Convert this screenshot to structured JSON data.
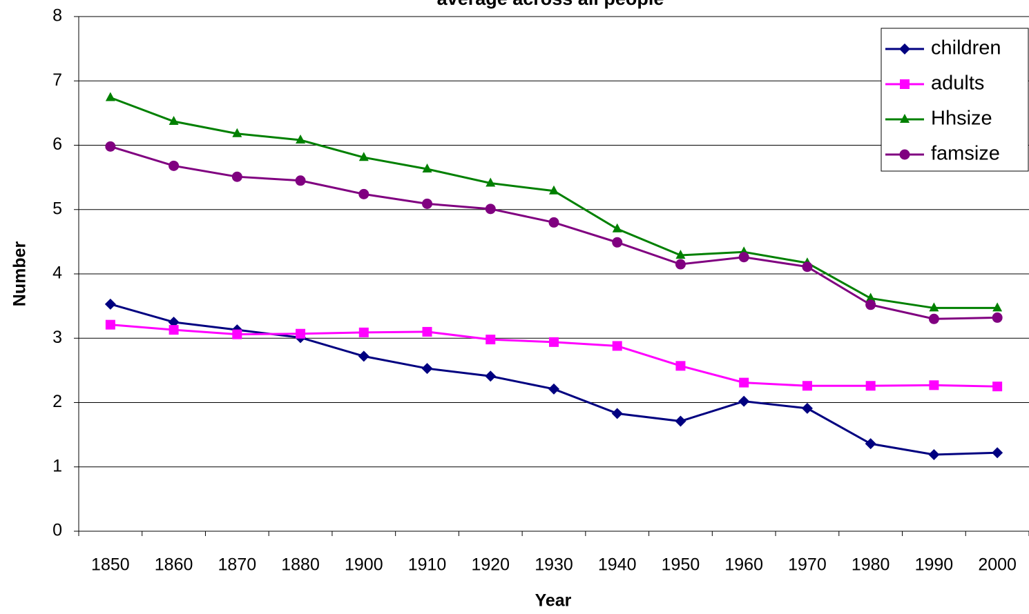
{
  "chart_data": {
    "type": "line",
    "title": "average across all people",
    "x_label": "Year",
    "y_label": "Number",
    "categories": [
      "1850",
      "1860",
      "1870",
      "1880",
      "1900",
      "1910",
      "1920",
      "1930",
      "1940",
      "1950",
      "1960",
      "1970",
      "1980",
      "1990",
      "2000"
    ],
    "series": [
      {
        "name": "children",
        "color": "#000080",
        "marker": "diamond",
        "values": [
          3.53,
          3.25,
          3.13,
          3.01,
          2.72,
          2.53,
          2.41,
          2.21,
          1.83,
          1.71,
          2.02,
          1.91,
          1.36,
          1.19,
          1.22
        ]
      },
      {
        "name": "adults",
        "color": "#ff00ff",
        "marker": "square",
        "values": [
          3.21,
          3.13,
          3.06,
          3.07,
          3.09,
          3.1,
          2.98,
          2.94,
          2.88,
          2.57,
          2.31,
          2.26,
          2.26,
          2.27,
          2.25
        ]
      },
      {
        "name": "Hhsize",
        "color": "#008000",
        "marker": "triangle",
        "values": [
          6.74,
          6.37,
          6.18,
          6.08,
          5.81,
          5.63,
          5.41,
          5.29,
          4.7,
          4.29,
          4.34,
          4.17,
          3.62,
          3.47,
          3.47
        ]
      },
      {
        "name": "famsize",
        "color": "#800080",
        "marker": "circle",
        "values": [
          5.98,
          5.68,
          5.51,
          5.45,
          5.24,
          5.09,
          5.01,
          4.8,
          4.49,
          4.15,
          4.26,
          4.11,
          3.52,
          3.3,
          3.32
        ]
      }
    ],
    "ylim": [
      0,
      8
    ],
    "yticks": [
      0,
      1,
      2,
      3,
      4,
      5,
      6,
      7,
      8
    ],
    "grid": true,
    "legend": "top-right"
  }
}
